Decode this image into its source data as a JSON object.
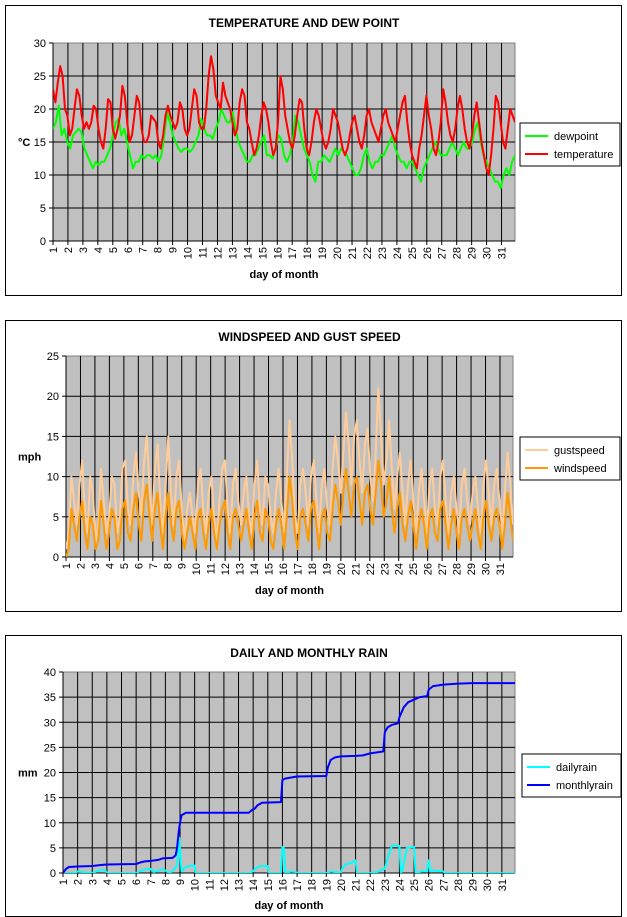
{
  "chart_data": [
    {
      "type": "line",
      "title": "TEMPERATURE AND DEW POINT",
      "xlabel": "day of month",
      "ylabel": "°C",
      "ylim": [
        0,
        30
      ],
      "yticks": [
        "0",
        "5",
        "10",
        "15",
        "20",
        "25",
        "30"
      ],
      "xticks": [
        "1",
        "2",
        "3",
        "4",
        "5",
        "6",
        "7",
        "8",
        "9",
        "10",
        "11",
        "12",
        "13",
        "14",
        "15",
        "16",
        "17",
        "18",
        "19",
        "20",
        "21",
        "22",
        "23",
        "24",
        "25",
        "26",
        "27",
        "28",
        "29",
        "30",
        "31"
      ],
      "xlim": [
        1,
        31.9
      ],
      "grid": true,
      "legend_position": "right",
      "series": [
        {
          "name": "dewpoint",
          "color": "#00ff00",
          "values": [
            17,
            18,
            20.5,
            16,
            17,
            15,
            14,
            16,
            16.5,
            17,
            16.5,
            14,
            13,
            12,
            11,
            12,
            11.5,
            12,
            12,
            13,
            14,
            16,
            18,
            18.5,
            16,
            17,
            15,
            13,
            11,
            12,
            12,
            13,
            12.5,
            13,
            13,
            12.5,
            13,
            12,
            13,
            16,
            19.5,
            18,
            16,
            15,
            14,
            13.5,
            14,
            14,
            13.5,
            14,
            15,
            16,
            18.5,
            17,
            16,
            16,
            15.5,
            17,
            18,
            20,
            19,
            18,
            18,
            19.5,
            17,
            15,
            14,
            13,
            12,
            12,
            13,
            13,
            14,
            15,
            16,
            13,
            13,
            12.5,
            14,
            16,
            15.5,
            13,
            12,
            13,
            15,
            19,
            18,
            16,
            14,
            13,
            12,
            10,
            9,
            12,
            12,
            13,
            12.5,
            12,
            13,
            14,
            13,
            14,
            13.5,
            13,
            12,
            11,
            10,
            10,
            11,
            13,
            14,
            12,
            11,
            12,
            12,
            13,
            13,
            14,
            15,
            16,
            14,
            13,
            12,
            12,
            11,
            12,
            12,
            11,
            10,
            9,
            11,
            12,
            13,
            14,
            15,
            14,
            13,
            13,
            13,
            14,
            15,
            14,
            13,
            14,
            15,
            14,
            14,
            15,
            17,
            18,
            15,
            13,
            12,
            11,
            10,
            9,
            9,
            8,
            10,
            11,
            10,
            12,
            13
          ]
        },
        {
          "name": "temperature",
          "color": "#ff0000",
          "values": [
            23,
            21,
            24,
            26.5,
            25,
            20,
            19,
            16,
            17,
            20,
            23,
            22,
            19,
            17,
            18,
            17,
            18,
            20.5,
            20,
            17,
            15,
            14,
            17,
            21.5,
            21,
            17,
            15.5,
            17,
            19,
            23.5,
            22,
            18,
            15,
            16,
            19,
            22,
            21,
            17,
            15,
            15,
            16,
            19,
            18.5,
            18,
            15,
            14,
            16,
            19,
            20.5,
            19,
            18,
            17,
            18,
            21,
            20,
            17,
            16,
            17,
            20,
            23,
            22,
            18,
            17,
            17,
            20,
            25,
            28,
            26,
            22,
            21,
            20,
            24,
            22,
            21,
            20,
            18,
            16,
            17,
            21,
            23,
            22,
            18,
            17,
            15,
            13,
            14,
            16,
            19,
            21,
            20,
            18,
            15,
            13,
            14,
            18,
            25,
            23,
            19,
            17,
            15,
            14,
            16,
            19,
            21.5,
            21,
            17,
            14,
            13,
            15,
            18,
            20,
            19,
            17,
            15,
            14,
            15,
            17,
            20,
            19,
            18,
            16,
            14,
            13,
            14,
            16,
            18,
            19,
            17,
            15,
            14,
            16,
            19,
            20,
            18,
            17,
            16,
            15,
            17,
            19,
            20,
            18,
            17,
            16,
            15,
            17,
            19,
            21,
            22,
            18,
            15,
            13,
            12,
            11,
            14,
            16,
            19,
            22,
            19,
            17,
            14,
            13,
            15,
            18,
            23,
            21,
            18,
            16,
            15,
            17,
            20,
            22,
            20,
            17,
            15,
            14,
            16,
            19,
            21,
            18,
            15,
            13,
            11,
            10,
            13,
            17,
            22,
            21,
            18,
            15,
            14,
            17,
            20,
            19,
            18
          ]
        }
      ]
    },
    {
      "type": "line",
      "title": "WINDSPEED AND GUST SPEED",
      "xlabel": "day of month",
      "ylabel": "mph",
      "ylim": [
        0,
        25
      ],
      "yticks": [
        "0",
        "5",
        "10",
        "15",
        "20",
        "25"
      ],
      "xticks": [
        "1",
        "2",
        "3",
        "4",
        "5",
        "6",
        "7",
        "8",
        "9",
        "10",
        "11",
        "12",
        "13",
        "14",
        "15",
        "16",
        "17",
        "18",
        "19",
        "20",
        "21",
        "22",
        "23",
        "24",
        "25",
        "26",
        "27",
        "28",
        "29",
        "30",
        "31"
      ],
      "xlim": [
        1,
        31.9
      ],
      "grid": true,
      "legend_position": "right",
      "series": [
        {
          "name": "gustspeed",
          "color": "#ffcc99",
          "values": [
            1,
            3,
            10,
            7,
            4,
            9,
            12,
            6,
            3,
            10,
            8,
            2,
            4,
            11,
            7,
            3,
            5,
            10,
            9,
            3,
            5,
            11,
            12,
            6,
            4,
            10,
            13,
            8,
            5,
            12,
            15,
            9,
            4,
            11,
            14,
            7,
            3,
            9,
            15,
            8,
            4,
            10,
            12,
            6,
            2,
            6,
            8,
            5,
            3,
            9,
            11,
            6,
            3,
            8,
            10,
            5,
            2,
            7,
            11,
            12,
            6,
            3,
            9,
            11,
            7,
            4,
            8,
            10,
            5,
            3,
            9,
            12,
            6,
            4,
            10,
            9,
            5,
            3,
            8,
            11,
            7,
            3,
            10,
            17,
            12,
            5,
            3,
            9,
            11,
            8,
            4,
            10,
            12,
            7,
            3,
            9,
            11,
            6,
            4,
            11,
            15,
            12,
            8,
            13,
            18,
            14,
            9,
            15,
            17,
            12,
            8,
            14,
            16,
            10,
            7,
            13,
            21,
            15,
            9,
            12,
            17,
            11,
            6,
            10,
            13,
            8,
            4,
            9,
            12,
            7,
            3,
            8,
            11,
            7,
            3,
            9,
            11,
            6,
            4,
            10,
            12,
            7,
            3,
            8,
            10,
            6,
            3,
            9,
            11,
            7,
            4,
            8,
            10,
            6,
            3,
            9,
            12,
            8,
            4,
            9,
            11,
            7,
            3,
            8,
            13,
            9,
            4
          ]
        },
        {
          "name": "windspeed",
          "color": "#ff9900",
          "values": [
            0,
            1,
            6,
            4,
            2,
            5,
            7,
            3,
            1,
            5,
            4,
            1,
            2,
            7,
            4,
            1,
            3,
            6,
            5,
            1,
            2,
            6,
            7,
            3,
            2,
            6,
            8,
            4,
            2,
            7,
            9,
            5,
            2,
            6,
            8,
            4,
            1,
            5,
            8,
            4,
            2,
            6,
            7,
            3,
            1,
            3,
            5,
            3,
            1,
            5,
            6,
            3,
            1,
            4,
            6,
            3,
            1,
            4,
            6,
            7,
            3,
            1,
            5,
            6,
            4,
            2,
            4,
            6,
            3,
            1,
            5,
            7,
            3,
            2,
            6,
            5,
            2,
            1,
            4,
            6,
            4,
            1,
            5,
            10,
            7,
            3,
            1,
            5,
            6,
            4,
            2,
            6,
            7,
            4,
            1,
            5,
            6,
            3,
            2,
            6,
            9,
            7,
            4,
            8,
            11,
            8,
            5,
            9,
            10,
            7,
            4,
            8,
            9,
            6,
            4,
            8,
            12,
            9,
            5,
            7,
            10,
            6,
            3,
            6,
            8,
            4,
            2,
            5,
            7,
            4,
            1,
            4,
            6,
            4,
            1,
            5,
            6,
            3,
            2,
            6,
            7,
            4,
            1,
            4,
            6,
            3,
            1,
            5,
            6,
            4,
            2,
            4,
            6,
            3,
            1,
            5,
            7,
            4,
            2,
            5,
            6,
            4,
            1,
            4,
            8,
            5,
            2
          ]
        }
      ]
    },
    {
      "type": "line",
      "title": "DAILY AND MONTHLY RAIN",
      "xlabel": "day of month",
      "ylabel": "mm",
      "ylim": [
        0,
        40
      ],
      "yticks": [
        "0",
        "5",
        "10",
        "15",
        "20",
        "25",
        "30",
        "35",
        "40"
      ],
      "xticks": [
        "1",
        "2",
        "3",
        "4",
        "5",
        "6",
        "7",
        "8",
        "9",
        "10",
        "11",
        "12",
        "13",
        "14",
        "15",
        "16",
        "17",
        "18",
        "19",
        "20",
        "21",
        "22",
        "23",
        "24",
        "25",
        "26",
        "27",
        "28",
        "29",
        "30",
        "31"
      ],
      "xlim": [
        1,
        31.9
      ],
      "grid": true,
      "legend_position": "right",
      "series": [
        {
          "name": "dailyrain",
          "color": "#00ffff",
          "x": [
            1,
            1.9,
            1.95,
            3,
            3.3,
            3.6,
            3.9,
            4,
            6,
            6.3,
            6.6,
            7,
            7.2,
            7.5,
            7.8,
            8.1,
            8.3,
            8.5,
            8.8,
            8.95,
            9.1,
            9.3,
            9.6,
            10,
            10.05,
            13.8,
            14,
            14.2,
            14.5,
            15,
            15.05,
            15.9,
            16,
            16.1,
            16.2,
            16.6,
            16.9,
            17,
            19,
            19.3,
            19.6,
            20,
            20.1,
            20.3,
            20.7,
            21,
            21.1,
            22,
            22.5,
            22.9,
            23,
            23.3,
            23.5,
            23.9,
            24,
            24.1,
            24.2,
            24.5,
            24.9,
            25,
            25.1,
            25.5,
            25.9,
            26,
            26.1,
            26.3,
            26.7,
            27,
            27.1,
            31.9
          ],
          "values": [
            0,
            0,
            0.3,
            0,
            0.3,
            0.6,
            0.5,
            0,
            0,
            0.4,
            0.7,
            0.8,
            0.2,
            0.4,
            0.8,
            0.3,
            0,
            0.4,
            1.5,
            7,
            0.3,
            1,
            1.4,
            1.5,
            0,
            0,
            0.4,
            1,
            1.4,
            1.4,
            0,
            0,
            5.2,
            5,
            0,
            0.3,
            0.2,
            0,
            0,
            0.3,
            0.2,
            0,
            1,
            1.7,
            2,
            2.5,
            0,
            0,
            0.2,
            0.8,
            0.8,
            4,
            5.5,
            5.5,
            5.4,
            0,
            0.5,
            5,
            5.2,
            5.2,
            0,
            0.3,
            0.4,
            2.5,
            0.4,
            0.5,
            0.4,
            0.3,
            0,
            0
          ]
        },
        {
          "name": "monthlyrain",
          "color": "#0000ff",
          "x": [
            1,
            1.2,
            1.4,
            2,
            3,
            3.3,
            3.6,
            4,
            6,
            6.3,
            6.6,
            7,
            7.5,
            7.8,
            8.5,
            8.7,
            8.8,
            8.9,
            9,
            9.1,
            9.4,
            10,
            13.7,
            13.9,
            14.1,
            14.3,
            14.6,
            15.9,
            16,
            16.2,
            16.6,
            17,
            19,
            19.1,
            19.3,
            19.6,
            20,
            21,
            21.5,
            22,
            22.9,
            23,
            23.2,
            23.5,
            23.9,
            24,
            24.3,
            24.6,
            25,
            25.4,
            25.9,
            26,
            26.3,
            27,
            28,
            29,
            31.9
          ],
          "values": [
            0,
            0.8,
            1.2,
            1.3,
            1.4,
            1.5,
            1.6,
            1.7,
            1.8,
            2.1,
            2.3,
            2.4,
            2.6,
            2.9,
            3,
            3.5,
            5,
            8,
            10,
            11.5,
            12,
            12,
            12,
            12.5,
            12.8,
            13.5,
            14,
            14.1,
            18.5,
            18.8,
            19,
            19.2,
            19.3,
            21,
            22.5,
            23,
            23.2,
            23.3,
            23.4,
            23.8,
            24.2,
            28,
            29,
            29.5,
            29.8,
            31,
            33,
            34,
            34.5,
            35,
            35.2,
            36.5,
            37.2,
            37.5,
            37.7,
            37.8,
            37.8
          ]
        }
      ]
    }
  ]
}
